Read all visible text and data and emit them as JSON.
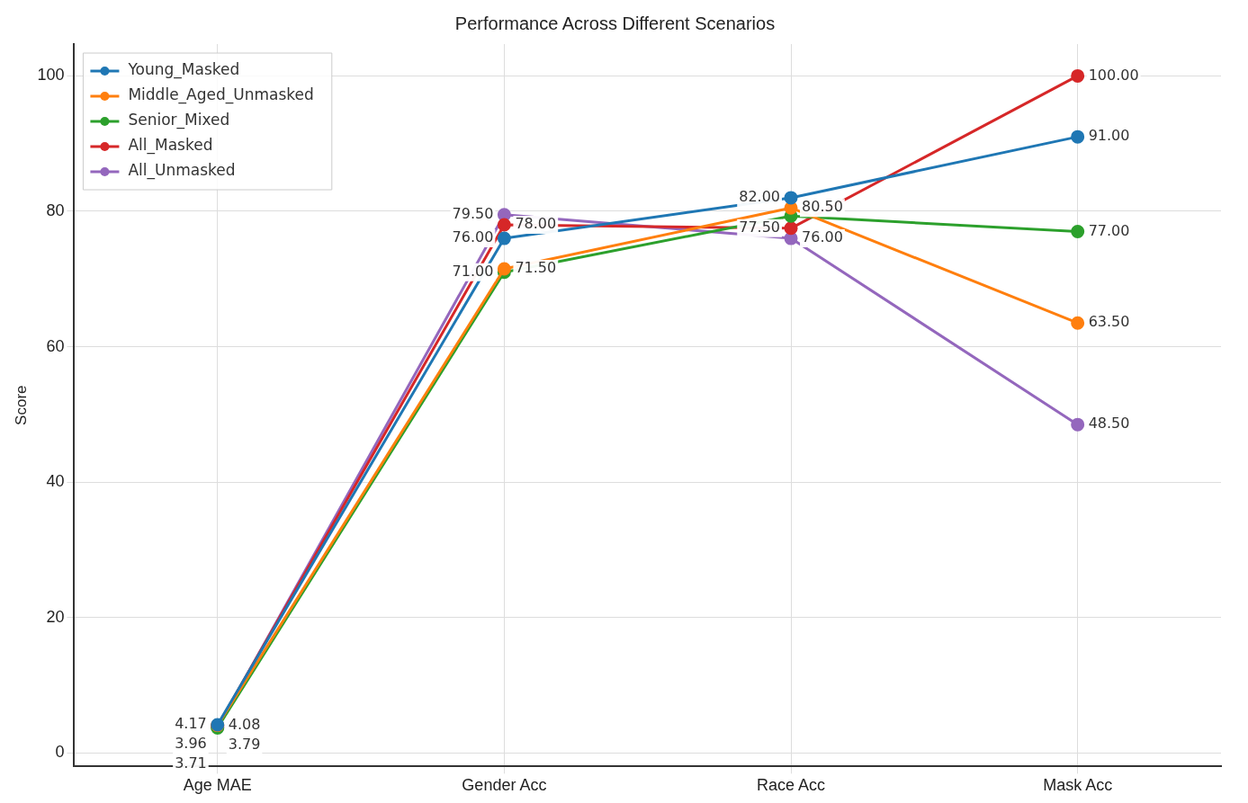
{
  "chart_data": {
    "type": "line",
    "title": "Performance Across Different Scenarios",
    "ylabel": "Score",
    "categories": [
      "Age MAE",
      "Gender Acc",
      "Race Acc",
      "Mask Acc"
    ],
    "ylim": [
      -2,
      104.7
    ],
    "yticks": [
      0,
      20,
      40,
      60,
      80,
      100
    ],
    "grid": true,
    "legend": "top left",
    "marker": "circle",
    "line_style": "solid",
    "series": [
      {
        "name": "Young_Masked",
        "color": "#1f77b4",
        "values": [
          4.17,
          76,
          82,
          91
        ],
        "value_labels": [
          "4.17",
          "76.00",
          "82.00",
          "91.00"
        ]
      },
      {
        "name": "Middle_Aged_Unmasked",
        "color": "#ff7f0e",
        "values": [
          4.08,
          71.5,
          80.5,
          63.5
        ],
        "value_labels": [
          "4.08",
          "71.50",
          "80.50",
          "63.50"
        ]
      },
      {
        "name": "Senior_Mixed",
        "color": "#2ca02c",
        "values": [
          3.71,
          71,
          79.3,
          77
        ],
        "value_labels": [
          "3.71",
          "71.00",
          null,
          "77.00"
        ]
      },
      {
        "name": "All_Masked",
        "color": "#d62728",
        "values": [
          3.96,
          78,
          77.5,
          100
        ],
        "value_labels": [
          "3.96",
          "78.00",
          "77.50",
          "100.00"
        ]
      },
      {
        "name": "All_Unmasked",
        "color": "#9467bd",
        "values": [
          3.79,
          79.5,
          76,
          48.5
        ],
        "value_labels": [
          "3.79",
          "79.50",
          "76.00",
          "48.50"
        ]
      }
    ]
  }
}
